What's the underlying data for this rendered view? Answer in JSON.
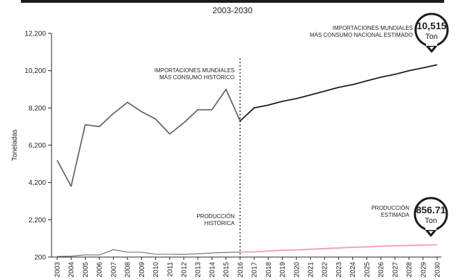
{
  "subtitle": "2003-2030",
  "chart_data": {
    "type": "line",
    "x": [
      2003,
      2004,
      2005,
      2006,
      2007,
      2008,
      2009,
      2010,
      2011,
      2012,
      2013,
      2014,
      2015,
      2016,
      2017,
      2018,
      2019,
      2020,
      2021,
      2022,
      2023,
      2024,
      2025,
      2026,
      2027,
      2028,
      2029,
      2030
    ],
    "ylabel": "Toneladas",
    "yticks": [
      200,
      2200,
      4200,
      6200,
      8200,
      10200,
      12200
    ],
    "ylim": [
      200,
      12200
    ],
    "grid": false,
    "colors": {
      "historical": "#666666",
      "forecast": "#1a1a1a",
      "production_forecast": "#f2a0c0",
      "divider": "#333333"
    },
    "series": [
      {
        "key": "imports_hist",
        "x": [
          2003,
          2004,
          2005,
          2006,
          2007,
          2008,
          2009,
          2010,
          2011,
          2012,
          2013,
          2014,
          2015,
          2016
        ],
        "values": [
          5400,
          4000,
          7300,
          7200,
          7900,
          8500,
          8000,
          7600,
          6800,
          7400,
          8100,
          8100,
          9200,
          7500
        ]
      },
      {
        "key": "imports_forecast",
        "x": [
          2016,
          2017,
          2018,
          2019,
          2020,
          2021,
          2022,
          2023,
          2024,
          2025,
          2026,
          2027,
          2028,
          2029,
          2030
        ],
        "values": [
          7500,
          8200,
          8350,
          8550,
          8700,
          8900,
          9100,
          9300,
          9450,
          9650,
          9850,
          10000,
          10200,
          10350,
          10515
        ]
      },
      {
        "key": "production_hist",
        "x": [
          2003,
          2004,
          2005,
          2006,
          2007,
          2008,
          2009,
          2010,
          2011,
          2012,
          2013,
          2014,
          2015,
          2016
        ],
        "values": [
          230,
          250,
          320,
          310,
          600,
          460,
          460,
          350,
          350,
          340,
          380,
          420,
          450,
          470
        ]
      },
      {
        "key": "production_forecast",
        "x": [
          2016,
          2017,
          2018,
          2019,
          2020,
          2021,
          2022,
          2023,
          2024,
          2025,
          2026,
          2027,
          2028,
          2029,
          2030
        ],
        "values": [
          470,
          480,
          520,
          560,
          580,
          620,
          650,
          690,
          720,
          750,
          780,
          800,
          820,
          840,
          856.71
        ]
      }
    ],
    "divider_year": 2016,
    "annotations": [
      {
        "key": "hist_imports",
        "lines": [
          "IMPORTACIONES MUNDIALES",
          "MÁS CONSUMO HISTÓRICO"
        ]
      },
      {
        "key": "est_imports",
        "lines": [
          "IMPORTACIONES MUNDIALES",
          "MÁS CONSUMO NACIONAL ESTIMADO"
        ]
      },
      {
        "key": "hist_prod",
        "lines": [
          "PRODUCCIÓN",
          "HISTÓRICA"
        ]
      },
      {
        "key": "est_prod",
        "lines": [
          "PRODUCCIÓN",
          "ESTIMADA"
        ]
      }
    ],
    "callouts": [
      {
        "key": "imports_end",
        "value": "10,515",
        "unit": "Ton"
      },
      {
        "key": "production_end",
        "value": "856.71",
        "unit": "Ton"
      }
    ]
  }
}
